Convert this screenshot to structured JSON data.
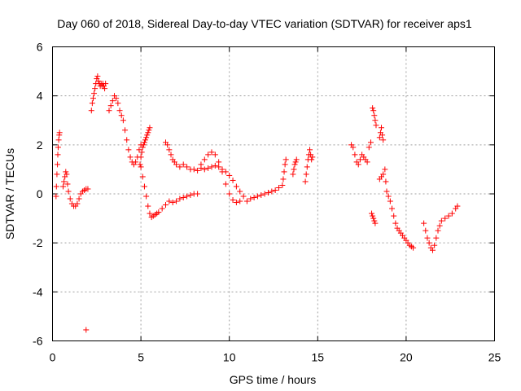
{
  "chart_data": {
    "type": "scatter",
    "title": "Day 060 of 2018, Sidereal Day-to-day VTEC variation (SDTVAR) for receiver aps1",
    "xlabel": "GPS time / hours",
    "ylabel": "SDTVAR / TECUs",
    "xlim": [
      0,
      25
    ],
    "ylim": [
      -6,
      6
    ],
    "xticks": [
      0,
      5,
      10,
      15,
      20,
      25
    ],
    "yticks": [
      -6,
      -4,
      -2,
      0,
      2,
      4,
      6
    ],
    "xtick_labels": [
      "0",
      "5",
      "10",
      "15",
      "20",
      "25"
    ],
    "ytick_labels": [
      "-6",
      "-4",
      "-2",
      "0",
      "2",
      "4",
      "6"
    ],
    "grid": true,
    "marker": "+",
    "color": "#ff0000",
    "series": [
      {
        "name": "aps1",
        "x": [
          0.2,
          0.22,
          0.25,
          0.28,
          0.3,
          0.32,
          0.35,
          0.38,
          0.4,
          0.6,
          0.65,
          0.7,
          0.75,
          0.8,
          0.85,
          0.9,
          1.0,
          1.1,
          1.2,
          1.3,
          1.4,
          1.5,
          1.6,
          1.7,
          1.8,
          1.9,
          2.0,
          1.9,
          2.2,
          2.25,
          2.3,
          2.35,
          2.4,
          2.45,
          2.5,
          2.55,
          2.6,
          2.65,
          2.7,
          2.75,
          2.8,
          2.85,
          2.9,
          2.95,
          3.0,
          3.2,
          3.3,
          3.4,
          3.5,
          3.6,
          3.7,
          3.8,
          3.9,
          4.0,
          4.1,
          4.2,
          4.3,
          4.4,
          4.5,
          4.6,
          4.7,
          4.8,
          4.9,
          5.0,
          4.95,
          5.0,
          5.05,
          5.1,
          5.15,
          5.2,
          5.25,
          5.3,
          5.35,
          5.4,
          5.45,
          5.5,
          5.0,
          5.1,
          5.2,
          5.3,
          5.4,
          5.5,
          5.6,
          5.7,
          5.8,
          5.9,
          6.0,
          6.2,
          6.4,
          6.6,
          6.8,
          7.0,
          7.2,
          7.4,
          7.6,
          7.8,
          8.0,
          8.2,
          6.4,
          6.5,
          6.6,
          6.7,
          6.8,
          6.9,
          7.0,
          7.2,
          7.4,
          7.6,
          7.8,
          8.0,
          8.2,
          8.4,
          8.6,
          8.8,
          9.0,
          9.2,
          9.4,
          9.6,
          9.8,
          10.0,
          10.2,
          10.4,
          10.6,
          10.8,
          11.0,
          8.4,
          8.6,
          8.8,
          9.0,
          9.2,
          9.4,
          9.6,
          9.8,
          10.0,
          10.2,
          10.4,
          10.6,
          11.2,
          11.4,
          11.6,
          11.8,
          12.0,
          12.2,
          12.4,
          12.6,
          12.8,
          13.0,
          13.05,
          13.1,
          13.15,
          13.2,
          13.6,
          13.65,
          13.7,
          13.75,
          13.8,
          14.3,
          14.35,
          14.4,
          14.45,
          14.5,
          14.55,
          14.6,
          14.65,
          14.7,
          16.9,
          17.0,
          17.1,
          17.2,
          17.3,
          17.4,
          17.5,
          17.6,
          17.7,
          17.8,
          17.9,
          18.0,
          18.1,
          18.15,
          18.2,
          18.25,
          18.3,
          18.05,
          18.1,
          18.15,
          18.2,
          18.25,
          18.5,
          18.55,
          18.6,
          18.65,
          18.7,
          18.5,
          18.6,
          18.7,
          18.8,
          18.85,
          18.9,
          19.0,
          19.1,
          19.2,
          19.3,
          19.4,
          19.5,
          19.6,
          19.7,
          19.8,
          19.9,
          20.0,
          20.1,
          20.2,
          20.3,
          20.4,
          21.0,
          21.1,
          21.2,
          21.3,
          21.4,
          21.5,
          21.6,
          21.7,
          21.8,
          21.9,
          22.0,
          22.2,
          22.4,
          22.6,
          22.8,
          22.9
        ],
        "y": [
          -0.1,
          0.3,
          0.8,
          1.2,
          1.6,
          1.9,
          2.2,
          2.4,
          2.5,
          0.3,
          0.5,
          0.7,
          0.9,
          0.8,
          0.4,
          0.1,
          -0.2,
          -0.4,
          -0.5,
          -0.5,
          -0.4,
          -0.2,
          0.0,
          0.1,
          0.15,
          0.2,
          0.2,
          -5.55,
          3.4,
          3.7,
          3.9,
          4.1,
          4.3,
          4.5,
          4.7,
          4.8,
          4.6,
          4.5,
          4.4,
          4.5,
          4.4,
          4.5,
          4.4,
          4.3,
          4.5,
          3.4,
          3.6,
          3.8,
          4.0,
          3.9,
          3.7,
          3.4,
          3.2,
          3.0,
          2.6,
          2.2,
          1.8,
          1.5,
          1.3,
          1.2,
          1.3,
          1.5,
          1.8,
          2.0,
          1.2,
          1.5,
          1.7,
          1.9,
          2.0,
          2.1,
          2.2,
          2.3,
          2.4,
          2.5,
          2.6,
          2.7,
          1.1,
          0.7,
          0.3,
          -0.1,
          -0.5,
          -0.8,
          -0.95,
          -0.9,
          -0.85,
          -0.8,
          -0.75,
          -0.6,
          -0.45,
          -0.3,
          -0.35,
          -0.3,
          -0.2,
          -0.15,
          -0.1,
          -0.05,
          0.0,
          0.0,
          2.1,
          2.0,
          1.8,
          1.6,
          1.4,
          1.3,
          1.2,
          1.1,
          1.2,
          1.1,
          1.0,
          1.0,
          0.95,
          1.05,
          1.0,
          1.05,
          1.1,
          1.15,
          1.1,
          1.0,
          0.9,
          0.75,
          0.55,
          0.3,
          0.1,
          -0.1,
          -0.3,
          1.2,
          1.4,
          1.6,
          1.7,
          1.6,
          1.3,
          0.9,
          0.4,
          0.0,
          -0.25,
          -0.35,
          -0.3,
          -0.2,
          -0.15,
          -0.1,
          -0.05,
          0.0,
          0.05,
          0.1,
          0.15,
          0.25,
          0.35,
          0.6,
          0.9,
          1.2,
          1.4,
          0.8,
          1.0,
          1.2,
          1.3,
          1.4,
          0.5,
          0.8,
          1.1,
          1.4,
          1.6,
          1.8,
          1.6,
          1.4,
          1.5,
          2.0,
          1.9,
          1.6,
          1.3,
          1.2,
          1.4,
          1.6,
          1.5,
          1.4,
          1.3,
          1.9,
          2.1,
          3.5,
          3.4,
          3.2,
          3.0,
          2.8,
          -0.8,
          -0.9,
          -1.0,
          -1.1,
          -1.2,
          2.3,
          2.5,
          2.7,
          2.4,
          2.2,
          0.6,
          0.7,
          0.8,
          1.0,
          0.5,
          0.1,
          -0.1,
          -0.3,
          -0.6,
          -0.9,
          -1.2,
          -1.4,
          -1.5,
          -1.6,
          -1.7,
          -1.8,
          -1.9,
          -2.0,
          -2.1,
          -2.15,
          -2.2,
          -1.2,
          -1.5,
          -1.8,
          -2.0,
          -2.2,
          -2.3,
          -2.1,
          -1.8,
          -1.5,
          -1.3,
          -1.1,
          -1.0,
          -0.9,
          -0.8,
          -0.6,
          -0.5
        ]
      }
    ]
  }
}
